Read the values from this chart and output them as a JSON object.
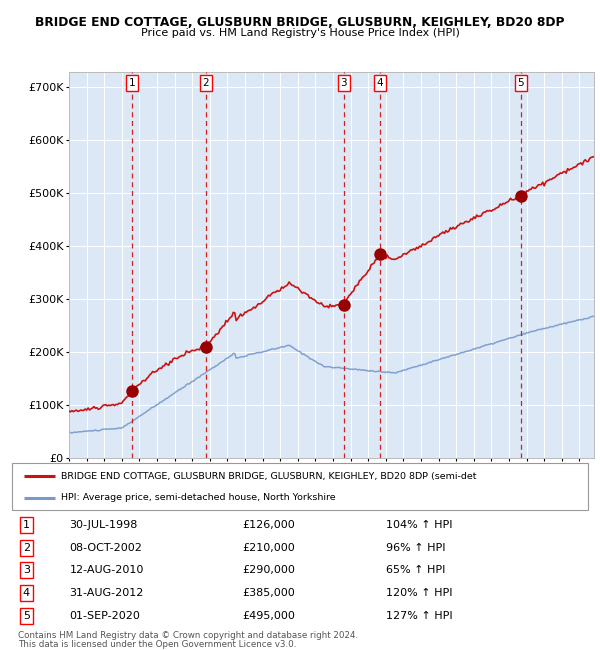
{
  "title1": "BRIDGE END COTTAGE, GLUSBURN BRIDGE, GLUSBURN, KEIGHLEY, BD20 8DP",
  "title2": "Price paid vs. HM Land Registry's House Price Index (HPI)",
  "legend_line1": "BRIDGE END COTTAGE, GLUSBURN BRIDGE, GLUSBURN, KEIGHLEY, BD20 8DP (semi-det",
  "legend_line2": "HPI: Average price, semi-detached house, North Yorkshire",
  "footer1": "Contains HM Land Registry data © Crown copyright and database right 2024.",
  "footer2": "This data is licensed under the Open Government Licence v3.0.",
  "sales": [
    {
      "num": 1,
      "date_label": "30-JUL-1998",
      "price": 126000,
      "hpi_pct": "104%",
      "year_x": 1998.57
    },
    {
      "num": 2,
      "date_label": "08-OCT-2002",
      "price": 210000,
      "hpi_pct": "96%",
      "year_x": 2002.77
    },
    {
      "num": 3,
      "date_label": "12-AUG-2010",
      "price": 290000,
      "hpi_pct": "65%",
      "year_x": 2010.62
    },
    {
      "num": 4,
      "date_label": "31-AUG-2012",
      "price": 385000,
      "hpi_pct": "120%",
      "year_x": 2012.67
    },
    {
      "num": 5,
      "date_label": "01-SEP-2020",
      "price": 495000,
      "hpi_pct": "127%",
      "year_x": 2020.67
    }
  ],
  "hpi_color": "#7799cc",
  "price_color": "#cc1111",
  "dot_color": "#990000",
  "vline_color": "#cc2222",
  "shade_color": "#dce8f5",
  "bg_color": "#ffffff",
  "ylim": [
    0,
    730000
  ],
  "xlim_start": 1995.0,
  "xlim_end": 2024.83,
  "yticks": [
    0,
    100000,
    200000,
    300000,
    400000,
    500000,
    600000,
    700000
  ],
  "ytick_labels": [
    "£0",
    "£100K",
    "£200K",
    "£300K",
    "£400K",
    "£500K",
    "£600K",
    "£700K"
  ]
}
